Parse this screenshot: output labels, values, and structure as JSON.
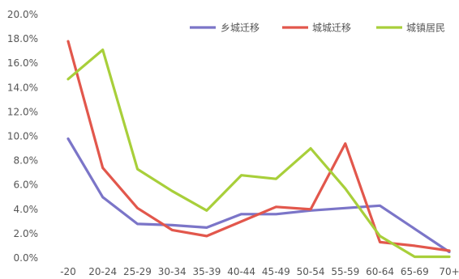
{
  "chart_data": {
    "type": "line",
    "title": "",
    "xlabel": "",
    "ylabel": "",
    "categories": [
      "-20",
      "20-24",
      "25-29",
      "30-34",
      "35-39",
      "40-44",
      "45-49",
      "50-54",
      "55-59",
      "60-64",
      "65-69",
      "70+"
    ],
    "ylim": [
      0,
      20
    ],
    "yticks": [
      "0.0%",
      "2.0%",
      "4.0%",
      "6.0%",
      "8.0%",
      "10.0%",
      "12.0%",
      "14.0%",
      "16.0%",
      "18.0%",
      "20.0%"
    ],
    "grid": false,
    "legend_position": "top-right",
    "series": [
      {
        "name": "乡城迁移",
        "color": "#7b75c8",
        "values": [
          9.8,
          5.0,
          2.8,
          2.7,
          2.5,
          3.6,
          3.6,
          3.9,
          4.1,
          4.3,
          2.4,
          0.5
        ]
      },
      {
        "name": "城城迁移",
        "color": "#e2574c",
        "values": [
          17.8,
          7.4,
          4.1,
          2.3,
          1.8,
          3.0,
          4.2,
          4.0,
          9.4,
          1.3,
          1.0,
          0.6
        ]
      },
      {
        "name": "城镇居民",
        "color": "#a8cf3a",
        "values": [
          14.7,
          17.1,
          7.3,
          5.5,
          3.9,
          6.8,
          6.5,
          9.0,
          5.7,
          1.8,
          0.1,
          0.1
        ]
      }
    ]
  }
}
